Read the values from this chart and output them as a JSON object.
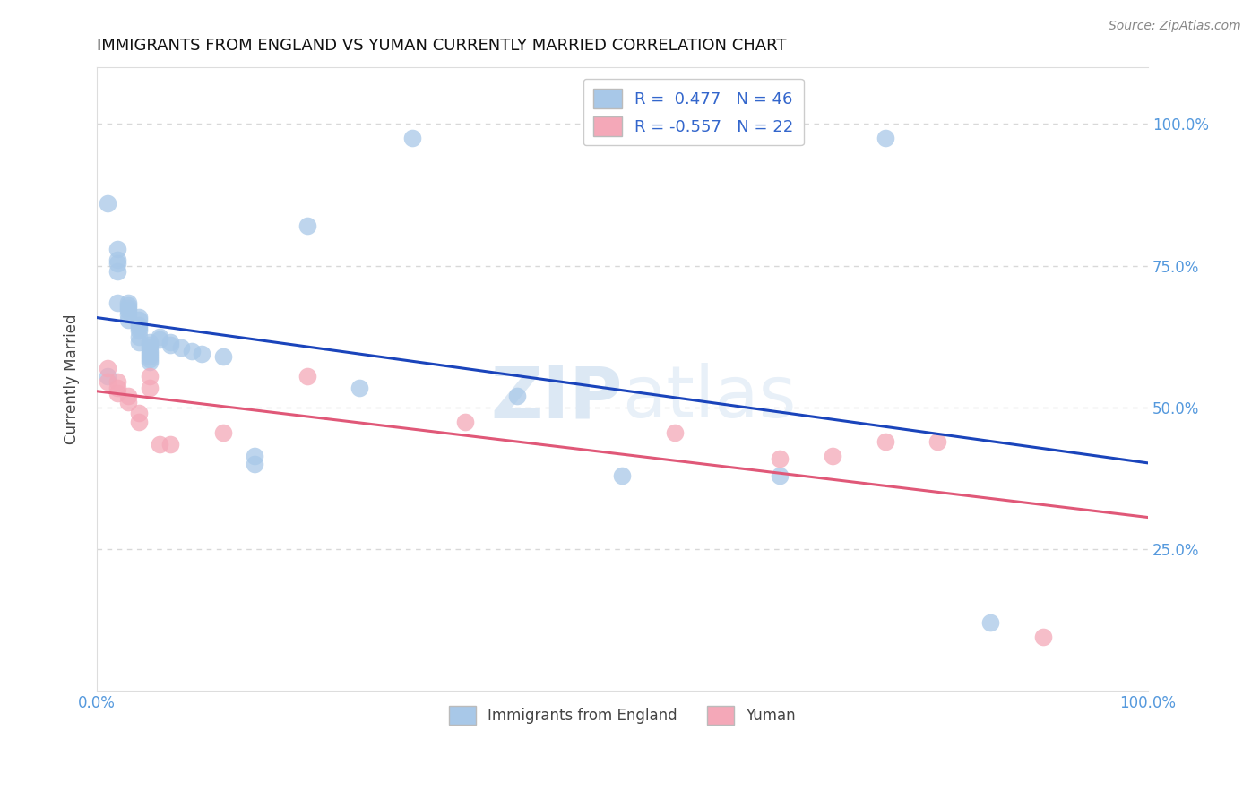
{
  "title": "IMMIGRANTS FROM ENGLAND VS YUMAN CURRENTLY MARRIED CORRELATION CHART",
  "source": "Source: ZipAtlas.com",
  "ylabel": "Currently Married",
  "y_ticks": [
    0.25,
    0.5,
    0.75,
    1.0
  ],
  "y_tick_labels": [
    "25.0%",
    "50.0%",
    "75.0%",
    "100.0%"
  ],
  "legend_label_blue": "R =  0.477   N = 46",
  "legend_label_pink": "R = -0.557   N = 22",
  "legend_label1": "Immigrants from England",
  "legend_label2": "Yuman",
  "blue_color": "#a8c8e8",
  "pink_color": "#f4a8b8",
  "trendline_blue": "#1a44bb",
  "trendline_pink": "#e05878",
  "blue_scatter": [
    [
      0.001,
      0.555
    ],
    [
      0.001,
      0.86
    ],
    [
      0.002,
      0.78
    ],
    [
      0.002,
      0.76
    ],
    [
      0.002,
      0.755
    ],
    [
      0.002,
      0.74
    ],
    [
      0.002,
      0.685
    ],
    [
      0.003,
      0.685
    ],
    [
      0.003,
      0.68
    ],
    [
      0.003,
      0.675
    ],
    [
      0.003,
      0.67
    ],
    [
      0.003,
      0.665
    ],
    [
      0.003,
      0.655
    ],
    [
      0.004,
      0.66
    ],
    [
      0.004,
      0.655
    ],
    [
      0.004,
      0.645
    ],
    [
      0.004,
      0.64
    ],
    [
      0.004,
      0.635
    ],
    [
      0.004,
      0.625
    ],
    [
      0.004,
      0.615
    ],
    [
      0.005,
      0.615
    ],
    [
      0.005,
      0.61
    ],
    [
      0.005,
      0.605
    ],
    [
      0.005,
      0.6
    ],
    [
      0.005,
      0.595
    ],
    [
      0.005,
      0.59
    ],
    [
      0.005,
      0.585
    ],
    [
      0.005,
      0.58
    ],
    [
      0.006,
      0.625
    ],
    [
      0.006,
      0.62
    ],
    [
      0.007,
      0.615
    ],
    [
      0.007,
      0.61
    ],
    [
      0.008,
      0.605
    ],
    [
      0.009,
      0.6
    ],
    [
      0.01,
      0.595
    ],
    [
      0.012,
      0.59
    ],
    [
      0.015,
      0.415
    ],
    [
      0.015,
      0.4
    ],
    [
      0.02,
      0.82
    ],
    [
      0.025,
      0.535
    ],
    [
      0.03,
      0.975
    ],
    [
      0.04,
      0.52
    ],
    [
      0.05,
      0.38
    ],
    [
      0.065,
      0.38
    ],
    [
      0.075,
      0.975
    ],
    [
      0.085,
      0.12
    ]
  ],
  "pink_scatter": [
    [
      0.001,
      0.57
    ],
    [
      0.001,
      0.545
    ],
    [
      0.002,
      0.545
    ],
    [
      0.002,
      0.535
    ],
    [
      0.002,
      0.525
    ],
    [
      0.003,
      0.52
    ],
    [
      0.003,
      0.51
    ],
    [
      0.004,
      0.49
    ],
    [
      0.004,
      0.475
    ],
    [
      0.005,
      0.555
    ],
    [
      0.005,
      0.535
    ],
    [
      0.006,
      0.435
    ],
    [
      0.007,
      0.435
    ],
    [
      0.012,
      0.455
    ],
    [
      0.02,
      0.555
    ],
    [
      0.035,
      0.475
    ],
    [
      0.055,
      0.455
    ],
    [
      0.065,
      0.41
    ],
    [
      0.07,
      0.415
    ],
    [
      0.075,
      0.44
    ],
    [
      0.08,
      0.44
    ],
    [
      0.09,
      0.095
    ]
  ],
  "xlim": [
    0.0,
    0.1
  ],
  "ylim": [
    0.0,
    1.1
  ],
  "background": "#ffffff",
  "grid_color": "#d8d8d8",
  "watermark": "ZIPatlas"
}
